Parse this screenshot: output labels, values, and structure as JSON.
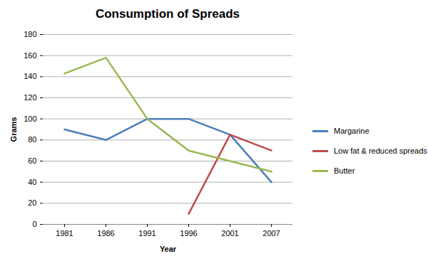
{
  "chart_data": {
    "type": "line",
    "title": "Consumption of Spreads",
    "x_label": "Year",
    "y_label": "Grams",
    "categories": [
      "1981",
      "1986",
      "1991",
      "1996",
      "2001",
      "2007"
    ],
    "series": [
      {
        "name": "Margarine",
        "color": "#4a7ebb",
        "values": [
          90,
          80,
          100,
          100,
          85,
          40
        ]
      },
      {
        "name": "Low fat & reduced spreads",
        "color": "#be4b48",
        "values": [
          null,
          null,
          null,
          10,
          85,
          70
        ]
      },
      {
        "name": "Butter",
        "color": "#98b954",
        "values": [
          143,
          158,
          100,
          70,
          60,
          50
        ]
      }
    ],
    "ylim": [
      0,
      180
    ],
    "yticks": [
      0,
      20,
      40,
      60,
      80,
      100,
      120,
      140,
      160,
      180
    ],
    "grid": true,
    "legend": "right"
  }
}
